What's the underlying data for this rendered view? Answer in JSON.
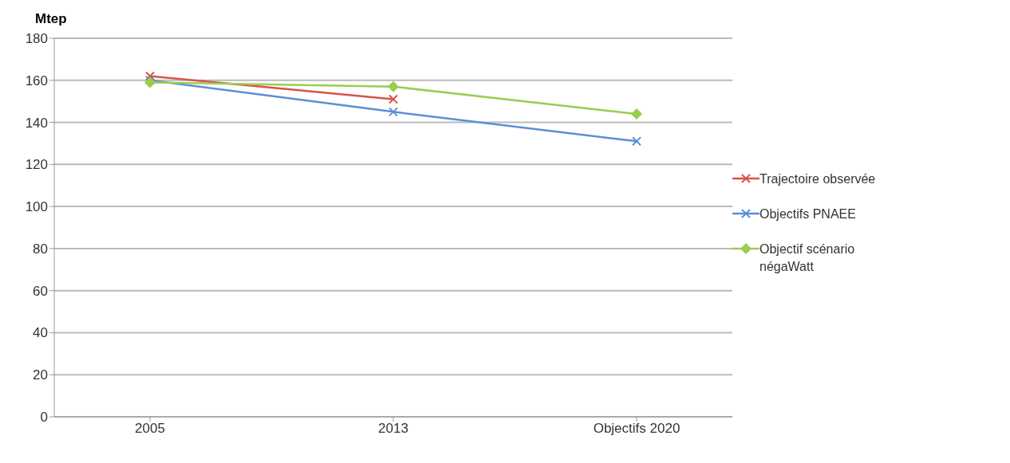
{
  "chart_data": {
    "type": "line",
    "ylabel": "Mtep",
    "categories": [
      "2005",
      "2013",
      "Objectifs 2020"
    ],
    "series": [
      {
        "name": "Trajectoire observée",
        "color": "#d9534a",
        "marker": "cross",
        "values": [
          162,
          151,
          null
        ]
      },
      {
        "name": "Objectifs PNAEE",
        "color": "#5b8fd6",
        "marker": "cross",
        "values": [
          160,
          145,
          131
        ]
      },
      {
        "name": "Objectif scénario négaWatt",
        "color": "#9acd50",
        "marker": "diamond",
        "values": [
          159,
          157,
          144
        ]
      }
    ],
    "ylim": [
      0,
      180
    ],
    "yticks": [
      0,
      20,
      40,
      60,
      80,
      100,
      120,
      140,
      160,
      180
    ],
    "grid": "y",
    "legend": "right",
    "line_style": "solid"
  }
}
